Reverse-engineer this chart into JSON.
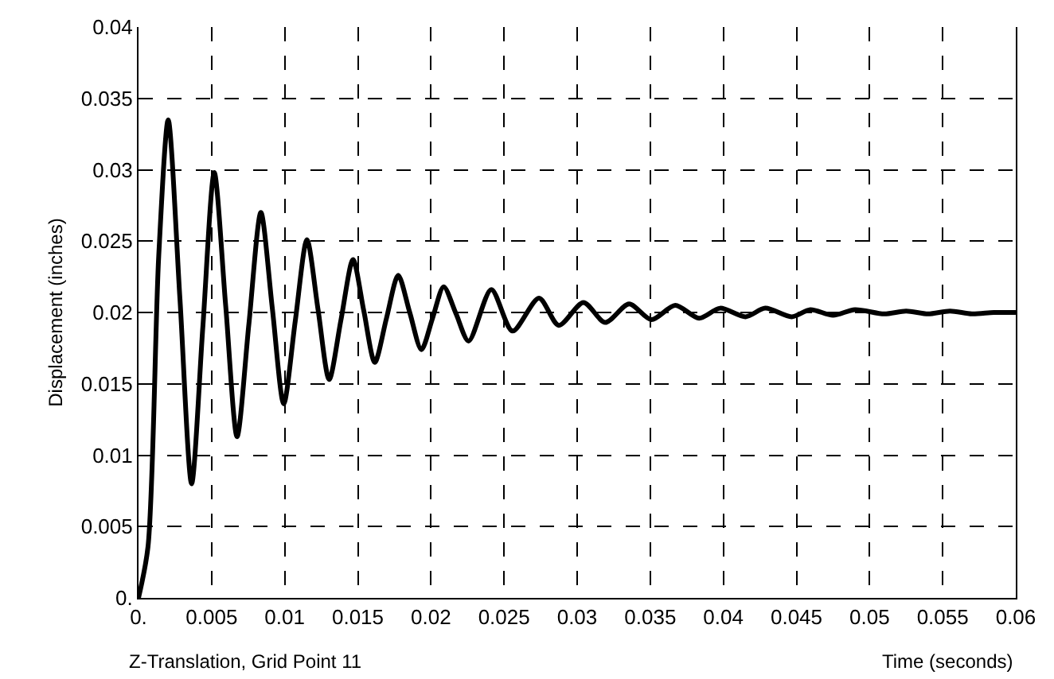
{
  "chart_data": {
    "type": "line",
    "xlabel": "Time (seconds)",
    "ylabel": "Displacement (inches)",
    "annotations": [
      "Z-Translation, Grid Point 11"
    ],
    "x": [
      0,
      0.00065,
      0.00138,
      0.00203,
      0.00283,
      0.00363,
      0.0044,
      0.00518,
      0.00596,
      0.00674,
      0.00755,
      0.00837,
      0.00915,
      0.00993,
      0.01072,
      0.01152,
      0.01228,
      0.01304,
      0.01385,
      0.01467,
      0.01541,
      0.01616,
      0.01696,
      0.01776,
      0.01855,
      0.01935,
      0.02011,
      0.02087,
      0.02172,
      0.02258,
      0.02413,
      0.02558,
      0.02739,
      0.02874,
      0.03043,
      0.03192,
      0.03355,
      0.03508,
      0.03671,
      0.03834,
      0.03978,
      0.04152,
      0.04287,
      0.04467,
      0.04595,
      0.0475,
      0.049,
      0.051,
      0.0525,
      0.054,
      0.0555,
      0.057,
      0.0585,
      0.06
    ],
    "series": [
      {
        "color": "#000000",
        "values": [
          0,
          0.0036,
          0.0239,
          0.0335,
          0.021,
          0.008,
          0.019,
          0.0298,
          0.0205,
          0.0113,
          0.0192,
          0.027,
          0.0203,
          0.0136,
          0.0194,
          0.0251,
          0.0202,
          0.0153,
          0.0195,
          0.0237,
          0.0201,
          0.0165,
          0.0196,
          0.0226,
          0.02,
          0.0174,
          0.0196,
          0.0218,
          0.0199,
          0.018,
          0.0216,
          0.0187,
          0.021,
          0.0191,
          0.0207,
          0.0193,
          0.0206,
          0.0195,
          0.0205,
          0.0196,
          0.0203,
          0.0197,
          0.0203,
          0.0197,
          0.0202,
          0.0198,
          0.0202,
          0.0199,
          0.0201,
          0.0199,
          0.0201,
          0.0199,
          0.02,
          0.02
        ]
      }
    ],
    "xlim": [
      0,
      0.06
    ],
    "ylim": [
      0,
      0.04
    ],
    "xticks": [
      {
        "value": 0,
        "label": "0."
      },
      0.005,
      0.01,
      0.015,
      0.02,
      0.025,
      0.03,
      0.035,
      0.04,
      0.045,
      0.05,
      0.055,
      0.06
    ],
    "yticks": [
      {
        "value": 0,
        "label": "0."
      },
      0.005,
      0.01,
      0.015,
      0.02,
      0.025,
      0.03,
      0.035,
      0.04
    ],
    "grid": true,
    "line_style": "solid"
  }
}
